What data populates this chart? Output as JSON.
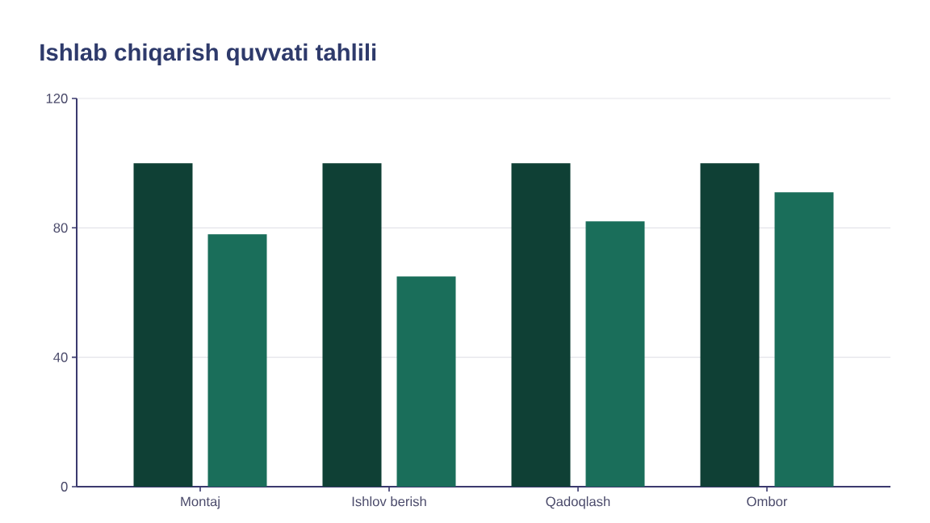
{
  "chart_data": {
    "type": "bar",
    "title": "Ishlab chiqarish quvvati tahlili",
    "categories": [
      "Montaj",
      "Ishlov berish",
      "Qadoqlash",
      "Ombor"
    ],
    "series": [
      {
        "color": "#0f4035",
        "values": [
          100,
          100,
          100,
          100
        ]
      },
      {
        "color": "#1a6e5a",
        "values": [
          78,
          65,
          82,
          91
        ]
      }
    ],
    "ylim": [
      0,
      120
    ],
    "yticks": [
      0,
      40,
      80,
      120
    ],
    "grid": "y"
  }
}
